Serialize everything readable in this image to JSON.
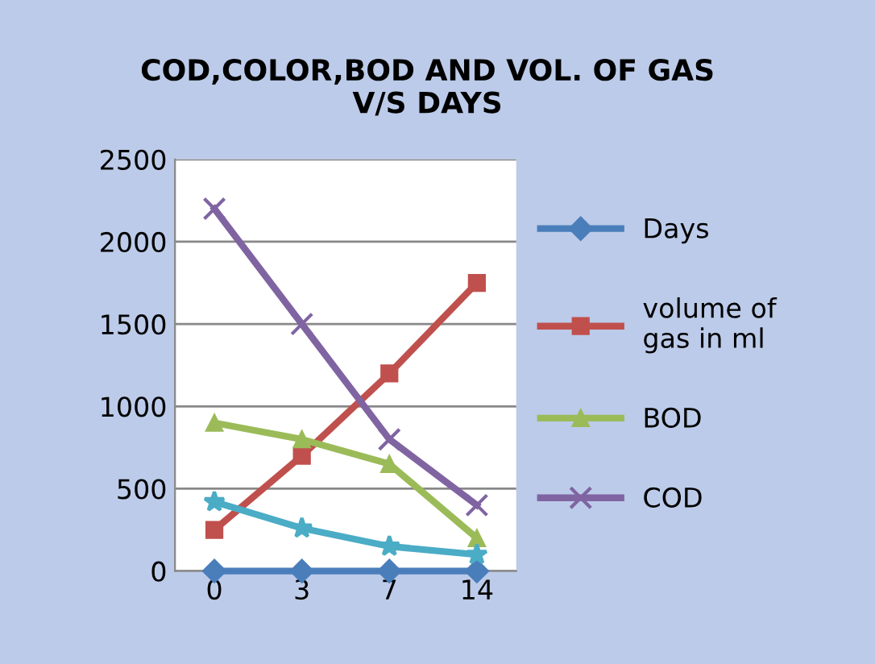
{
  "chart_data": {
    "type": "line",
    "title": "COD,COLOR,BOD AND VOL. OF GAS\nV/S DAYS",
    "categories": [
      "0",
      "3",
      "7",
      "14"
    ],
    "series": [
      {
        "name": "Days",
        "color": "#4a7ebb",
        "marker": "diamond",
        "values": [
          0,
          0,
          0,
          0
        ]
      },
      {
        "name": "volume of\ngas in ml",
        "color": "#c0504d",
        "marker": "square",
        "values": [
          250,
          700,
          1200,
          1750
        ]
      },
      {
        "name": "BOD",
        "color": "#9bbb59",
        "marker": "triangle",
        "values": [
          900,
          800,
          650,
          200
        ]
      },
      {
        "name": "COD",
        "color": "#8064a2",
        "marker": "cross",
        "values": [
          2200,
          1500,
          800,
          400
        ]
      },
      {
        "color": "#4bacc6",
        "marker": "star",
        "values": [
          420,
          260,
          150,
          100
        ]
      }
    ],
    "ylim": [
      0,
      2500
    ],
    "yticks": [
      0,
      500,
      1000,
      1500,
      2000,
      2500
    ],
    "grid": "y",
    "legend": "right"
  }
}
